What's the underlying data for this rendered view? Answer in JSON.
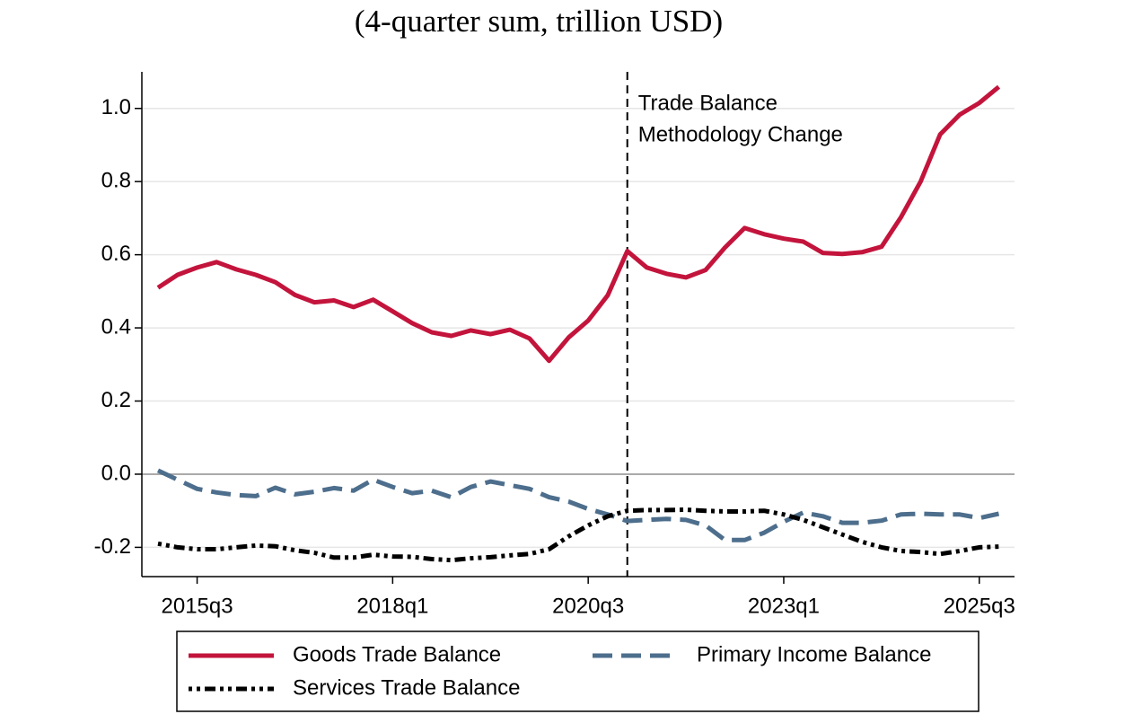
{
  "chart_data": {
    "type": "line",
    "title": "(4-quarter sum, trillion USD)",
    "categories": [
      null,
      null,
      "2015q3",
      null,
      null,
      null,
      null,
      null,
      null,
      null,
      null,
      null,
      "2018q1",
      null,
      null,
      null,
      null,
      null,
      null,
      null,
      null,
      null,
      "2020q3",
      null,
      null,
      null,
      null,
      null,
      null,
      null,
      null,
      null,
      "2023q1",
      null,
      null,
      null,
      null,
      null,
      null,
      null,
      null,
      null,
      "2025q3",
      null
    ],
    "series": [
      {
        "name": "Goods Trade Balance",
        "color": "#c3143c",
        "line_style": "solid",
        "values": [
          0.51,
          0.545,
          0.565,
          0.58,
          0.56,
          0.545,
          0.525,
          0.49,
          0.47,
          0.475,
          0.457,
          0.477,
          0.445,
          0.413,
          0.388,
          0.378,
          0.393,
          0.383,
          0.395,
          0.371,
          0.31,
          0.374,
          0.42,
          0.489,
          0.61,
          0.565,
          0.548,
          0.538,
          0.558,
          0.62,
          0.673,
          0.656,
          0.644,
          0.636,
          0.605,
          0.602,
          0.607,
          0.622,
          0.703,
          0.8,
          0.929,
          0.983,
          1.015,
          1.059
        ]
      },
      {
        "name": "Primary Income Balance",
        "color": "#4d6e8c",
        "line_style": "dash",
        "values": [
          0.01,
          -0.015,
          -0.04,
          -0.05,
          -0.057,
          -0.06,
          -0.037,
          -0.055,
          -0.048,
          -0.038,
          -0.045,
          -0.015,
          -0.035,
          -0.052,
          -0.045,
          -0.063,
          -0.035,
          -0.02,
          -0.03,
          -0.04,
          -0.063,
          -0.075,
          -0.095,
          -0.11,
          -0.128,
          -0.125,
          -0.122,
          -0.125,
          -0.14,
          -0.18,
          -0.18,
          -0.16,
          -0.13,
          -0.105,
          -0.115,
          -0.133,
          -0.133,
          -0.127,
          -0.11,
          -0.108,
          -0.11,
          -0.11,
          -0.12,
          -0.108
        ]
      },
      {
        "name": "Services Trade Balance",
        "color": "#000000",
        "line_style": "dot",
        "values": [
          -0.19,
          -0.2,
          -0.205,
          -0.205,
          -0.2,
          -0.195,
          -0.197,
          -0.208,
          -0.215,
          -0.228,
          -0.228,
          -0.22,
          -0.225,
          -0.226,
          -0.232,
          -0.235,
          -0.23,
          -0.227,
          -0.222,
          -0.218,
          -0.205,
          -0.17,
          -0.14,
          -0.115,
          -0.1,
          -0.098,
          -0.098,
          -0.097,
          -0.1,
          -0.102,
          -0.102,
          -0.1,
          -0.11,
          -0.125,
          -0.145,
          -0.165,
          -0.185,
          -0.2,
          -0.21,
          -0.213,
          -0.218,
          -0.21,
          -0.2,
          -0.198
        ]
      }
    ],
    "ylim": [
      -0.28,
      1.1
    ],
    "yticks": [
      -0.2,
      {
        "value": 0,
        "label": "0.0"
      },
      0.2,
      0.4,
      0.6,
      0.8,
      {
        "value": 1,
        "label": "1.0"
      }
    ],
    "grid": true,
    "annotation": {
      "at_category": 24,
      "lines": [
        "Trade Balance",
        "Methodology Change"
      ]
    }
  }
}
